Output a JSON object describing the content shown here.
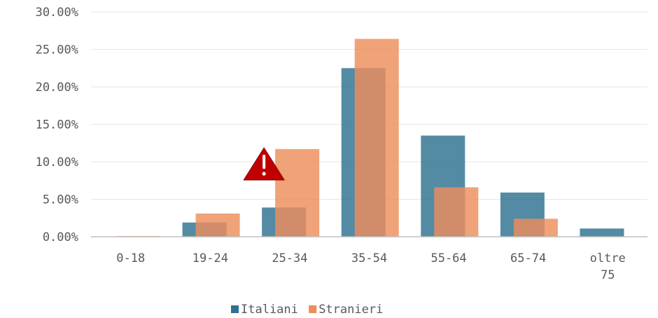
{
  "chart_data": {
    "type": "bar",
    "categories": [
      [
        "0-18"
      ],
      [
        "19-24"
      ],
      [
        "25-34"
      ],
      [
        "35-54"
      ],
      [
        "55-64"
      ],
      [
        "65-74"
      ],
      [
        "oltre",
        "75"
      ]
    ],
    "series": [
      {
        "name": "Italiani",
        "color": "#2E7290",
        "values": [
          0.0,
          1.9,
          3.9,
          22.5,
          13.5,
          5.9,
          1.1
        ]
      },
      {
        "name": "Stranieri",
        "color": "#ED8D5C",
        "values": [
          0.1,
          3.1,
          11.7,
          26.4,
          6.6,
          2.4,
          0.0
        ]
      }
    ],
    "ylim": [
      0,
      30
    ],
    "yticks": [
      "0.00%",
      "5.00%",
      "10.00%",
      "15.00%",
      "20.00%",
      "25.00%",
      "30.00%"
    ],
    "grid": true,
    "legend_position": "bottom",
    "annotation": {
      "icon": "warning-icon",
      "category": "25-34",
      "color": "#C00000"
    }
  }
}
